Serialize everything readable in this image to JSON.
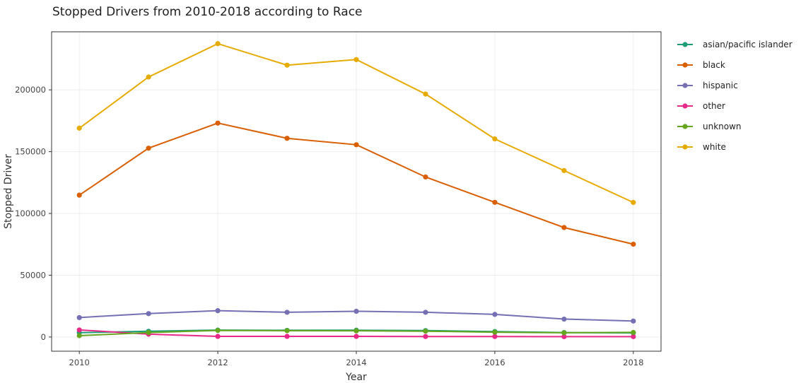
{
  "chart_data": {
    "type": "line",
    "title": "Stopped Drivers from 2010-2018 according to Race",
    "xlabel": "Year",
    "ylabel": "Stopped Driver",
    "x": [
      2010,
      2011,
      2012,
      2013,
      2014,
      2015,
      2016,
      2017,
      2018
    ],
    "xlim": [
      2009.6,
      2018.4
    ],
    "ylim": [
      -11500,
      247000
    ],
    "x_ticks": [
      2010,
      2012,
      2014,
      2016,
      2018
    ],
    "y_ticks": [
      0,
      50000,
      100000,
      150000,
      200000
    ],
    "grid": true,
    "legend_position": "right",
    "series": [
      {
        "name": "asian/pacific islander",
        "color": "#1b9e77",
        "values": [
          3500,
          4600,
          5600,
          5400,
          5500,
          5200,
          4400,
          3600,
          3300
        ]
      },
      {
        "name": "black",
        "color": "#d95f02",
        "values": [
          114800,
          152800,
          173100,
          160800,
          155600,
          129500,
          109000,
          88600,
          75100
        ]
      },
      {
        "name": "hispanic",
        "color": "#7570b3",
        "values": [
          15700,
          18900,
          21300,
          20000,
          20800,
          20000,
          18300,
          14500,
          12900
        ]
      },
      {
        "name": "other",
        "color": "#e7298a",
        "values": [
          5700,
          2300,
          500,
          500,
          500,
          400,
          400,
          300,
          300
        ]
      },
      {
        "name": "unknown",
        "color": "#66a61e",
        "values": [
          1100,
          3600,
          5300,
          5100,
          5000,
          4700,
          3900,
          3400,
          3700
        ]
      },
      {
        "name": "white",
        "color": "#e6ab02",
        "values": [
          169000,
          210400,
          237400,
          220000,
          224500,
          196600,
          160300,
          134700,
          108900
        ]
      }
    ]
  }
}
